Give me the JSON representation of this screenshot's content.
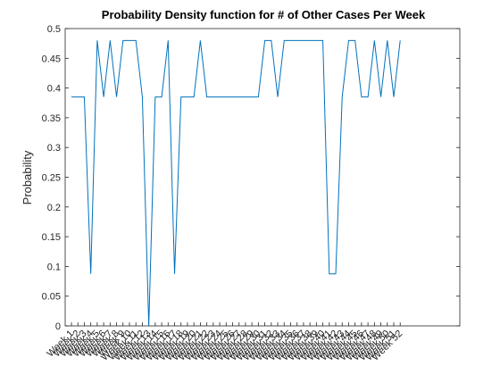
{
  "chart_data": {
    "type": "line",
    "title": "Probability Density function for # of Other Cases Per Week",
    "y_label": "Probability",
    "categories": [
      "Week 1",
      "Week 2",
      "Week 3",
      "Week 4",
      "Week 5",
      "Week 6",
      "Week 7",
      "Week 8",
      "Week 9",
      "Week 10",
      "Week 11",
      "Week 12",
      "Week 13",
      "Week 14",
      "Week 15",
      "Week 16",
      "Week 17",
      "Week 18",
      "Week 19",
      "Week 20",
      "Week 21",
      "Week 22",
      "Week 23",
      "Week 24",
      "Week 25",
      "Week 26",
      "Week 27",
      "Week 28",
      "Week 29",
      "Week 30",
      "Week 31",
      "Week 32",
      "Week 33",
      "Week 34",
      "Week 35",
      "Week 36",
      "Week 37",
      "Week 38",
      "Week 39",
      "Week 40",
      "Week 41",
      "Week 42",
      "Week 43",
      "Week 44",
      "Week 45",
      "Week 46",
      "Week 47",
      "Week 48",
      "Week 49",
      "Week 50",
      "Week 51",
      "Week 52"
    ],
    "series": [
      {
        "name": "Probability",
        "color": "#0072bd",
        "values": [
          0.385,
          0.385,
          0.385,
          0.0875,
          0.48,
          0.385,
          0.48,
          0.385,
          0.48,
          0.48,
          0.48,
          0.385,
          0,
          0.385,
          0.385,
          0.48,
          0.0875,
          0.385,
          0.385,
          0.385,
          0.48,
          0.385,
          0.385,
          0.385,
          0.385,
          0.385,
          0.385,
          0.385,
          0.385,
          0.385,
          0.48,
          0.48,
          0.385,
          0.48,
          0.48,
          0.48,
          0.48,
          0.48,
          0.48,
          0.48,
          0.0875,
          0.0875,
          0.385,
          0.48,
          0.48,
          0.385,
          0.385,
          0.48,
          0.385,
          0.48,
          0.385,
          0.48
        ]
      }
    ],
    "ylim": [
      0,
      0.5
    ],
    "yticks": [
      0,
      0.05,
      0.1,
      0.15,
      0.2,
      0.25,
      0.3,
      0.35,
      0.4,
      0.45,
      0.5
    ]
  }
}
